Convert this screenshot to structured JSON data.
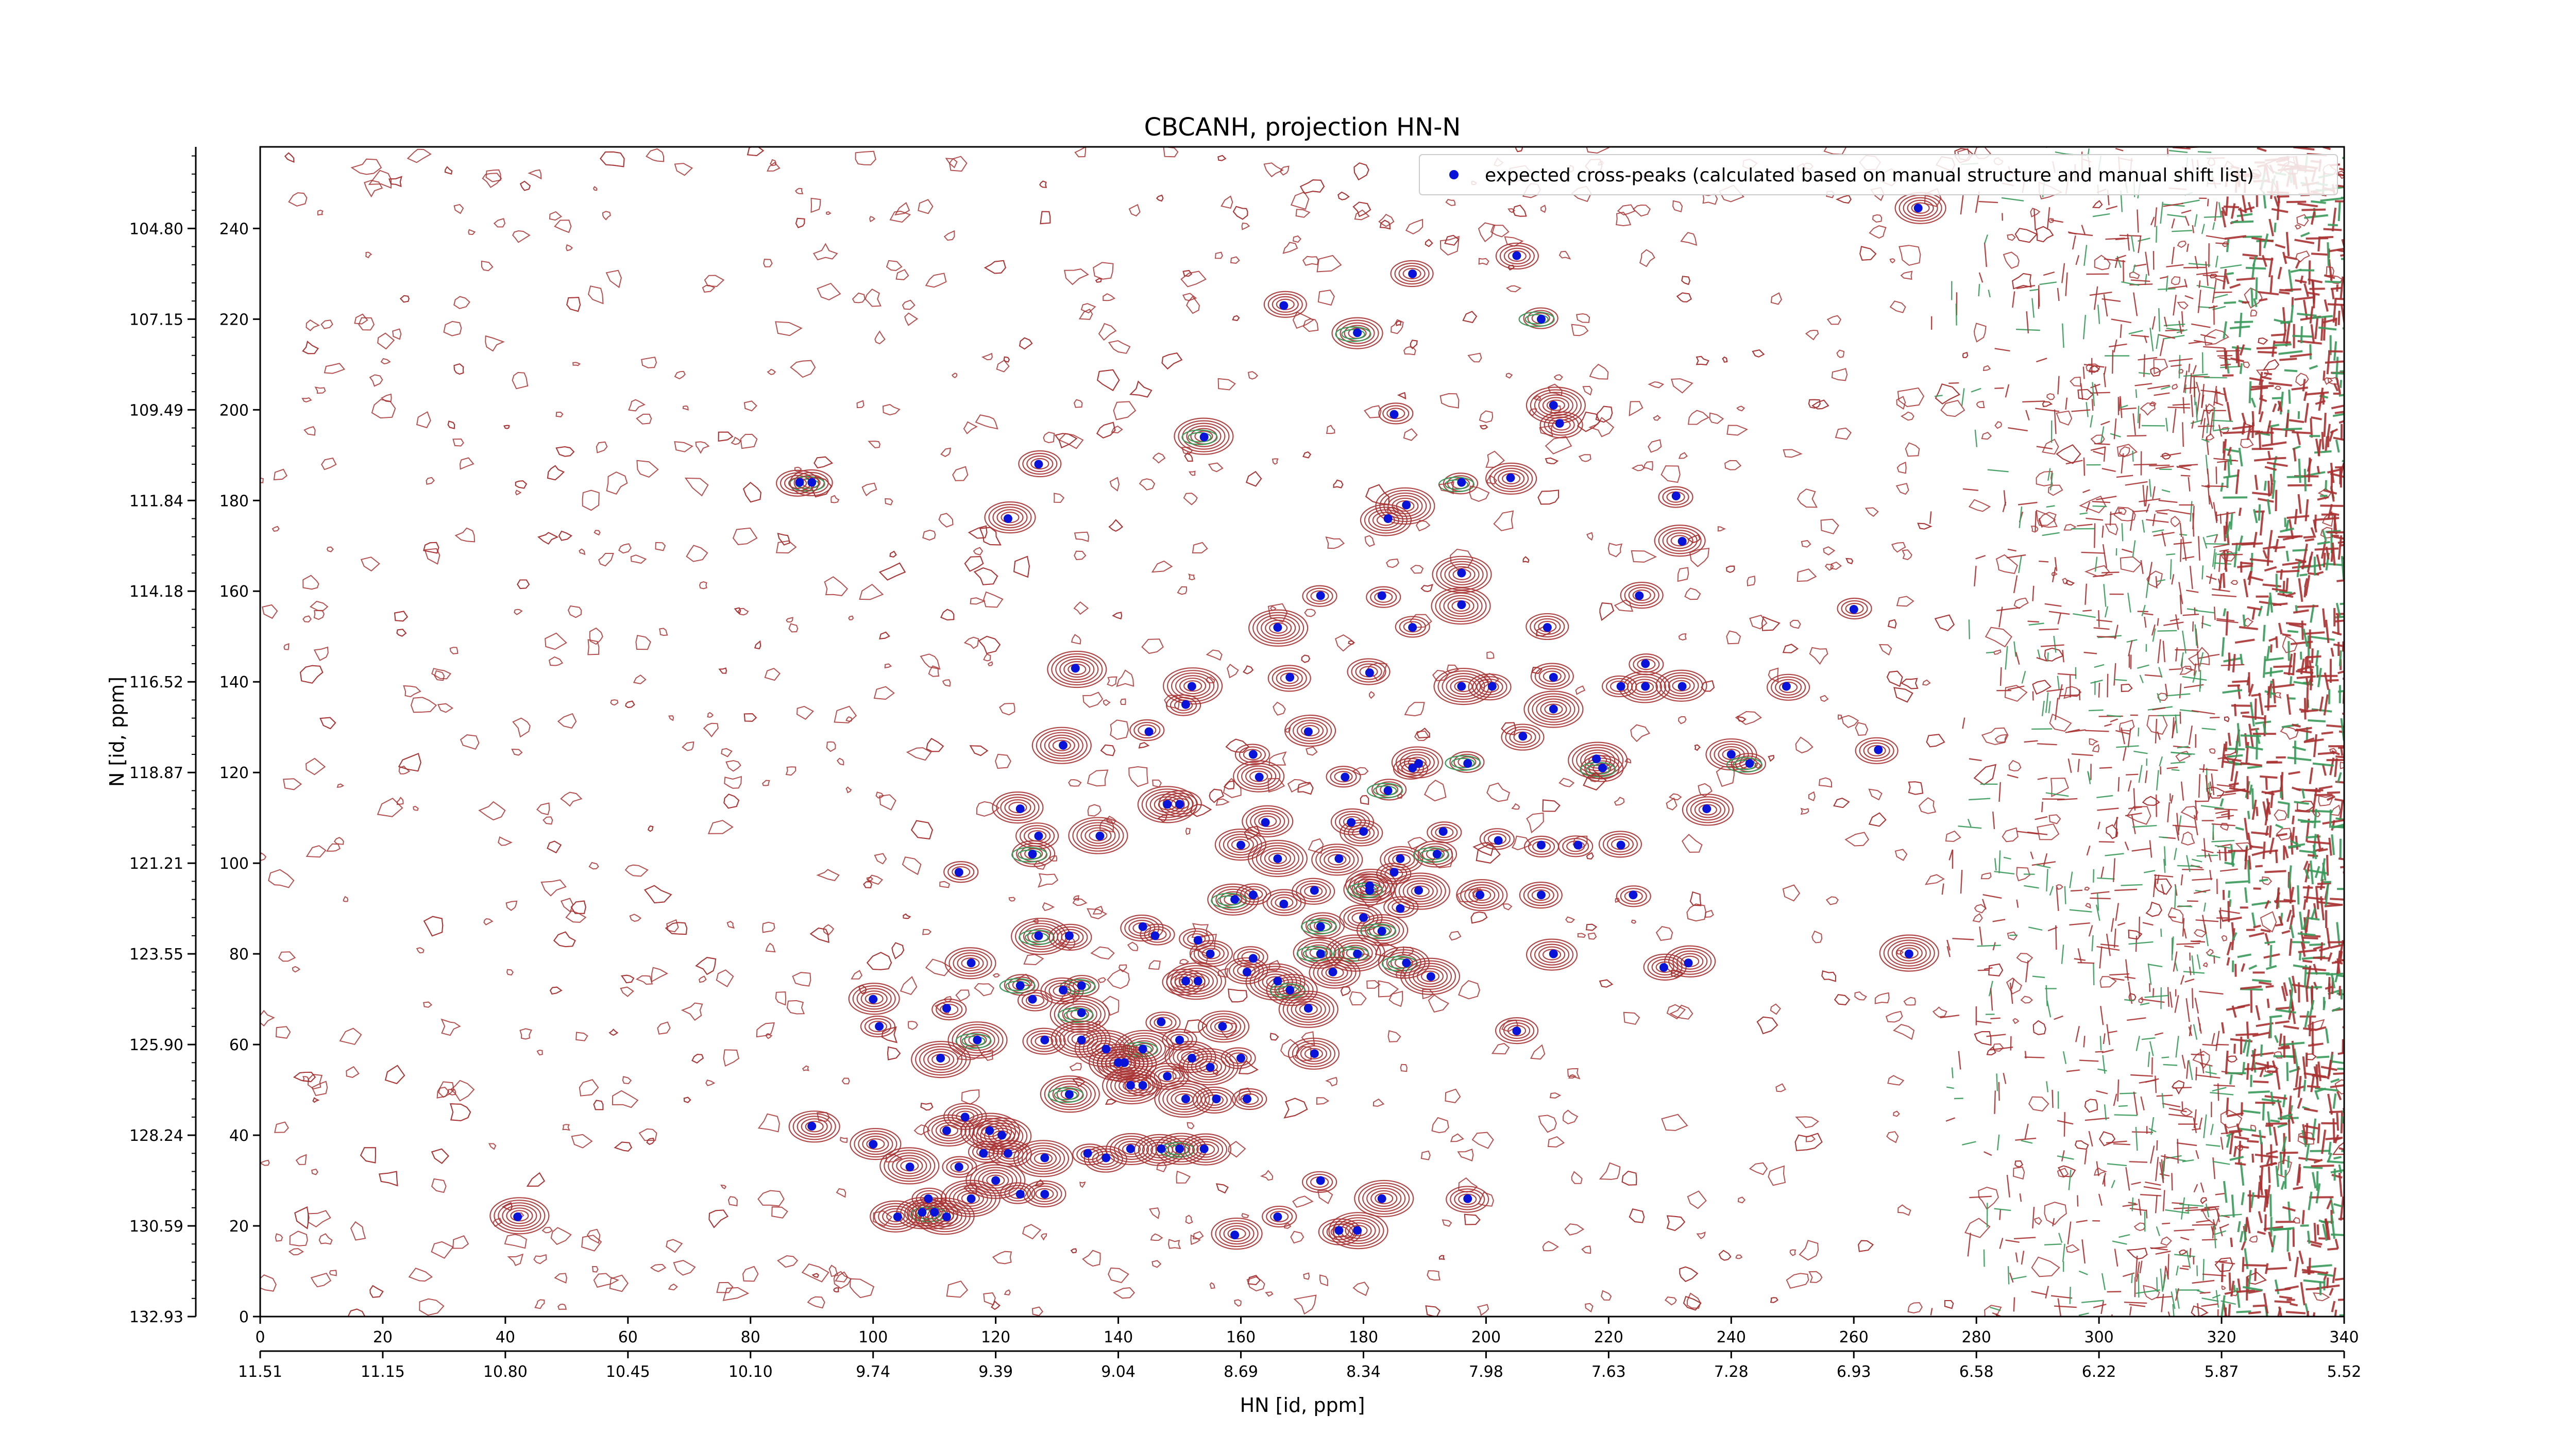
{
  "chart_data": {
    "type": "scatter",
    "title": "CBCANH, projection HN-N",
    "xlabel": "HN [id, ppm]",
    "ylabel": "N [id, ppm]",
    "xlim": [
      0,
      340
    ],
    "ylim": [
      0,
      258
    ],
    "x_ticks": [
      0,
      20,
      40,
      60,
      80,
      100,
      120,
      140,
      160,
      180,
      200,
      220,
      240,
      260,
      280,
      300,
      320,
      340
    ],
    "y_ticks": [
      0,
      20,
      40,
      60,
      80,
      100,
      120,
      140,
      160,
      180,
      200,
      220,
      240
    ],
    "secondary_x_tick_labels": [
      "11.51",
      "11.15",
      "10.80",
      "10.45",
      "10.10",
      "9.74",
      "9.39",
      "9.04",
      "8.69",
      "8.34",
      "7.98",
      "7.63",
      "7.28",
      "6.93",
      "6.58",
      "6.22",
      "5.87",
      "5.52"
    ],
    "secondary_y_tick_labels": [
      "132.93",
      "130.59",
      "128.24",
      "125.90",
      "123.55",
      "121.21",
      "118.87",
      "116.52",
      "114.18",
      "111.84",
      "109.49",
      "107.15",
      "104.80"
    ],
    "legend": {
      "position": "top-right",
      "label": "expected cross-peaks (calculated based on manual structure and manual shift list)"
    },
    "contour_colors": {
      "positive": "#a83232",
      "negative": "#3a9a5a"
    },
    "marker_color": "#0a14d8",
    "series": [
      {
        "name": "expected cross-peaks (calculated based on manual structure and manual shift list)",
        "points": [
          [
            270.5,
            244.5
          ],
          [
            205,
            234
          ],
          [
            188,
            230
          ],
          [
            167,
            223
          ],
          [
            209,
            220
          ],
          [
            179,
            217
          ],
          [
            211,
            201
          ],
          [
            212,
            197
          ],
          [
            185,
            199
          ],
          [
            154,
            194
          ],
          [
            127,
            188
          ],
          [
            90,
            184
          ],
          [
            88,
            184
          ],
          [
            204,
            185
          ],
          [
            196,
            184
          ],
          [
            231,
            181
          ],
          [
            187,
            179
          ],
          [
            122,
            176
          ],
          [
            184,
            176
          ],
          [
            232,
            171
          ],
          [
            196,
            164
          ],
          [
            183,
            159
          ],
          [
            173,
            159
          ],
          [
            225,
            159
          ],
          [
            196,
            157
          ],
          [
            260,
            156
          ],
          [
            166,
            152
          ],
          [
            210,
            152
          ],
          [
            188,
            152
          ],
          [
            226,
            144
          ],
          [
            133,
            143
          ],
          [
            181,
            142
          ],
          [
            168,
            141
          ],
          [
            211,
            141
          ],
          [
            196,
            139
          ],
          [
            201,
            139
          ],
          [
            222,
            139
          ],
          [
            232,
            139
          ],
          [
            226,
            139
          ],
          [
            249,
            139
          ],
          [
            152,
            139
          ],
          [
            151,
            135
          ],
          [
            211,
            134
          ],
          [
            171,
            129
          ],
          [
            145,
            129
          ],
          [
            206,
            128
          ],
          [
            131,
            126
          ],
          [
            162,
            124
          ],
          [
            240,
            124
          ],
          [
            188,
            121
          ],
          [
            189,
            122
          ],
          [
            197,
            122
          ],
          [
            218,
            123
          ],
          [
            219,
            121
          ],
          [
            243,
            122
          ],
          [
            264,
            125
          ],
          [
            163,
            119
          ],
          [
            177,
            119
          ],
          [
            184,
            116
          ],
          [
            150,
            113
          ],
          [
            148,
            113
          ],
          [
            124,
            112
          ],
          [
            236,
            112
          ],
          [
            178,
            109
          ],
          [
            164,
            109
          ],
          [
            127,
            106
          ],
          [
            137,
            106
          ],
          [
            180,
            107
          ],
          [
            193,
            107
          ],
          [
            202,
            105
          ],
          [
            160,
            104
          ],
          [
            209,
            104
          ],
          [
            215,
            104
          ],
          [
            222,
            104
          ],
          [
            176,
            101
          ],
          [
            126,
            102
          ],
          [
            166,
            101
          ],
          [
            186,
            101
          ],
          [
            192,
            102
          ],
          [
            114,
            98
          ],
          [
            185,
            98
          ],
          [
            181,
            95
          ],
          [
            159,
            92
          ],
          [
            199,
            93
          ],
          [
            189,
            94
          ],
          [
            172,
            94
          ],
          [
            162,
            93
          ],
          [
            181,
            94
          ],
          [
            186,
            90
          ],
          [
            167,
            91
          ],
          [
            209,
            93
          ],
          [
            224,
            93
          ],
          [
            180,
            88
          ],
          [
            183,
            85
          ],
          [
            173,
            86
          ],
          [
            153,
            83
          ],
          [
            127,
            84
          ],
          [
            132,
            84
          ],
          [
            146,
            84
          ],
          [
            144,
            86
          ],
          [
            155,
            80
          ],
          [
            162,
            79
          ],
          [
            187,
            78
          ],
          [
            179,
            80
          ],
          [
            173,
            80
          ],
          [
            211,
            80
          ],
          [
            269,
            80
          ],
          [
            116,
            78
          ],
          [
            161,
            76
          ],
          [
            166,
            74
          ],
          [
            175,
            76
          ],
          [
            229,
            77
          ],
          [
            233,
            78
          ],
          [
            124,
            73
          ],
          [
            191,
            75
          ],
          [
            151,
            74
          ],
          [
            153,
            74
          ],
          [
            134,
            73
          ],
          [
            131,
            72
          ],
          [
            126,
            70
          ],
          [
            168,
            72
          ],
          [
            171,
            68
          ],
          [
            100,
            70
          ],
          [
            134,
            67
          ],
          [
            112,
            68
          ],
          [
            101,
            64
          ],
          [
            147,
            65
          ],
          [
            157,
            64
          ],
          [
            117,
            61
          ],
          [
            205,
            63
          ],
          [
            134,
            61
          ],
          [
            150,
            61
          ],
          [
            138,
            59
          ],
          [
            144,
            59
          ],
          [
            128,
            61
          ],
          [
            172,
            58
          ],
          [
            140,
            56
          ],
          [
            160,
            57
          ],
          [
            152,
            57
          ],
          [
            155,
            55
          ],
          [
            141,
            56
          ],
          [
            111,
            57
          ],
          [
            148,
            53
          ],
          [
            142,
            51
          ],
          [
            132,
            49
          ],
          [
            144,
            51
          ],
          [
            151,
            48
          ],
          [
            156,
            48
          ],
          [
            161,
            48
          ],
          [
            115,
            44
          ],
          [
            119,
            41
          ],
          [
            112,
            41
          ],
          [
            121,
            40
          ],
          [
            90,
            42
          ],
          [
            100,
            38
          ],
          [
            106,
            33
          ],
          [
            135,
            36
          ],
          [
            142,
            37
          ],
          [
            147,
            37
          ],
          [
            150,
            37
          ],
          [
            154,
            37
          ],
          [
            122,
            36
          ],
          [
            118,
            36
          ],
          [
            114,
            33
          ],
          [
            128,
            35
          ],
          [
            138,
            35
          ],
          [
            120,
            30
          ],
          [
            109,
            26
          ],
          [
            116,
            26
          ],
          [
            124,
            27
          ],
          [
            128,
            27
          ],
          [
            173,
            30
          ],
          [
            108,
            23
          ],
          [
            110,
            23
          ],
          [
            104,
            22
          ],
          [
            112,
            22
          ],
          [
            183,
            26
          ],
          [
            197,
            26
          ],
          [
            42,
            22
          ],
          [
            159,
            18
          ],
          [
            166,
            22
          ],
          [
            176,
            19
          ],
          [
            179,
            19
          ]
        ]
      }
    ]
  }
}
